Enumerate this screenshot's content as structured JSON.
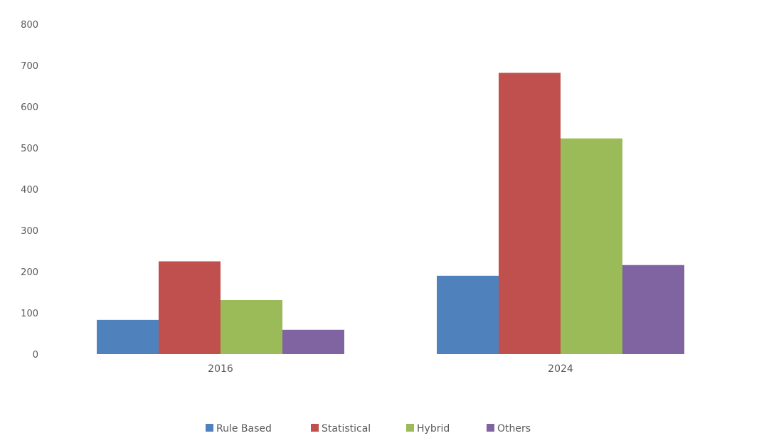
{
  "chart_data": {
    "type": "bar",
    "categories": [
      "2016",
      "2024"
    ],
    "series": [
      {
        "name": "Rule Based",
        "values": [
          83,
          190
        ],
        "color": "#4f81bd"
      },
      {
        "name": "Statistical",
        "values": [
          225,
          682
        ],
        "color": "#c0504d"
      },
      {
        "name": "Hybrid",
        "values": [
          131,
          523
        ],
        "color": "#9bbb59"
      },
      {
        "name": "Others",
        "values": [
          59,
          216
        ],
        "color": "#8064a2"
      }
    ],
    "title": "",
    "xlabel": "",
    "ylabel": "",
    "ylim": [
      0,
      800
    ],
    "yticks": [
      0,
      100,
      200,
      300,
      400,
      500,
      600,
      700,
      800
    ],
    "grid": false,
    "legend": "bottom"
  }
}
